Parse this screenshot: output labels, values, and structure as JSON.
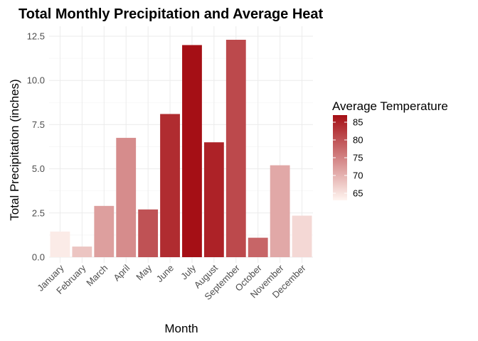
{
  "chart_data": {
    "type": "bar",
    "title": "Total Monthly Precipitation and Average Heat",
    "xlabel": "Month",
    "ylabel": "Total Precipitation (inches)",
    "categories": [
      "January",
      "February",
      "March",
      "April",
      "May",
      "June",
      "July",
      "August",
      "September",
      "October",
      "November",
      "December"
    ],
    "values": [
      1.45,
      0.6,
      2.9,
      6.75,
      2.7,
      8.1,
      12.0,
      6.5,
      12.3,
      1.1,
      5.2,
      2.35
    ],
    "color_values": [
      64,
      68,
      72,
      74,
      80,
      84,
      87,
      85,
      81,
      78,
      71,
      66
    ],
    "ylim": [
      0,
      12.9
    ],
    "yticks": [
      0.0,
      2.5,
      5.0,
      7.5,
      10.0,
      12.5
    ],
    "ytick_labels": [
      "0.0",
      "2.5",
      "5.0",
      "7.5",
      "10.0",
      "12.5"
    ],
    "grid": true,
    "legend": {
      "title": "Average Temperature",
      "placement": "right",
      "ticks": [
        65,
        70,
        75,
        80,
        85
      ],
      "range": [
        63,
        87
      ],
      "low_color": "#fff5f0",
      "high_color": "#a50f15"
    }
  }
}
